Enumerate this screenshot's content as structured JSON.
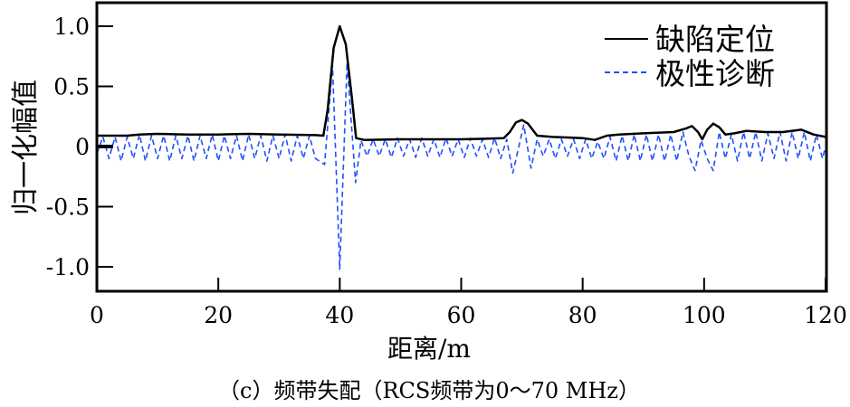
{
  "chart_data": {
    "type": "line",
    "title": "",
    "caption": "（c）频带失配（RCS频带为0～70 MHz）",
    "xlabel": "距离/m",
    "ylabel": "归一化幅值",
    "xlim": [
      0,
      120
    ],
    "ylim": [
      -1.2,
      1.2
    ],
    "xticks": [
      0,
      20,
      40,
      60,
      80,
      100,
      120
    ],
    "xtick_labels": [
      "0",
      "20",
      "40",
      "60",
      "80",
      "100",
      "120"
    ],
    "yticks": [
      1.0,
      0.5,
      0,
      -0.5,
      -1.0
    ],
    "ytick_labels": [
      "1.0",
      "0.5",
      "0",
      "-0.5",
      "-1.0"
    ],
    "grid": false,
    "legend_position": "top-right",
    "series": [
      {
        "name": "缺陷定位",
        "color": "#000000",
        "style": "solid",
        "points": [
          [
            0,
            0.09
          ],
          [
            5,
            0.09
          ],
          [
            7,
            0.1
          ],
          [
            10,
            0.105
          ],
          [
            15,
            0.1
          ],
          [
            18,
            0.1
          ],
          [
            20,
            0.1
          ],
          [
            25,
            0.105
          ],
          [
            30,
            0.1
          ],
          [
            36,
            0.095
          ],
          [
            37.3,
            0.09
          ],
          [
            38,
            0.3
          ],
          [
            39,
            0.82
          ],
          [
            40,
            1.0
          ],
          [
            41,
            0.85
          ],
          [
            42,
            0.4
          ],
          [
            42.7,
            0.07
          ],
          [
            44,
            0.055
          ],
          [
            50,
            0.06
          ],
          [
            55,
            0.06
          ],
          [
            60,
            0.06
          ],
          [
            64,
            0.065
          ],
          [
            67,
            0.07
          ],
          [
            68,
            0.12
          ],
          [
            69,
            0.2
          ],
          [
            70,
            0.22
          ],
          [
            71,
            0.19
          ],
          [
            72.5,
            0.09
          ],
          [
            75,
            0.08
          ],
          [
            80,
            0.07
          ],
          [
            82,
            0.055
          ],
          [
            84,
            0.09
          ],
          [
            86,
            0.1
          ],
          [
            90,
            0.11
          ],
          [
            95,
            0.12
          ],
          [
            97,
            0.15
          ],
          [
            98,
            0.17
          ],
          [
            99,
            0.12
          ],
          [
            99.7,
            0.06
          ],
          [
            100.5,
            0.14
          ],
          [
            101.5,
            0.19
          ],
          [
            102.5,
            0.16
          ],
          [
            103.5,
            0.1
          ],
          [
            105,
            0.11
          ],
          [
            107,
            0.13
          ],
          [
            110,
            0.12
          ],
          [
            113,
            0.12
          ],
          [
            116,
            0.14
          ],
          [
            118,
            0.1
          ],
          [
            120,
            0.08
          ]
        ]
      },
      {
        "name": "极性诊断",
        "color": "#1f4fff",
        "style": "dashed",
        "points": [
          [
            0,
            -0.06
          ],
          [
            1,
            0.08
          ],
          [
            2,
            -0.1
          ],
          [
            3,
            0.08
          ],
          [
            4,
            -0.12
          ],
          [
            5,
            0.08
          ],
          [
            6,
            -0.1
          ],
          [
            7,
            0.1
          ],
          [
            8,
            -0.12
          ],
          [
            9,
            0.09
          ],
          [
            10,
            -0.1
          ],
          [
            11,
            0.09
          ],
          [
            12,
            -0.12
          ],
          [
            13,
            0.09
          ],
          [
            14,
            -0.1
          ],
          [
            15,
            0.09
          ],
          [
            16,
            -0.12
          ],
          [
            17,
            0.09
          ],
          [
            18,
            -0.1
          ],
          [
            19,
            0.1
          ],
          [
            20,
            -0.12
          ],
          [
            21,
            0.09
          ],
          [
            22,
            -0.1
          ],
          [
            23,
            0.09
          ],
          [
            24,
            -0.12
          ],
          [
            25,
            0.1
          ],
          [
            26,
            -0.1
          ],
          [
            27,
            0.09
          ],
          [
            28,
            -0.12
          ],
          [
            29,
            0.09
          ],
          [
            30,
            -0.1
          ],
          [
            31,
            0.1
          ],
          [
            32,
            -0.12
          ],
          [
            33,
            0.09
          ],
          [
            34,
            -0.1
          ],
          [
            35,
            0.09
          ],
          [
            36,
            -0.1
          ],
          [
            37.5,
            -0.15
          ],
          [
            38.8,
            0.68
          ],
          [
            40,
            -1.02
          ],
          [
            41.2,
            0.7
          ],
          [
            42.6,
            -0.3
          ],
          [
            43.5,
            0.05
          ],
          [
            44.5,
            -0.08
          ],
          [
            45.5,
            0.06
          ],
          [
            46.5,
            -0.08
          ],
          [
            47.5,
            0.06
          ],
          [
            48.5,
            -0.09
          ],
          [
            49.5,
            0.07
          ],
          [
            50.5,
            -0.08
          ],
          [
            51.5,
            0.06
          ],
          [
            52.5,
            -0.09
          ],
          [
            53.5,
            0.07
          ],
          [
            54.5,
            -0.08
          ],
          [
            55.5,
            0.06
          ],
          [
            56.5,
            -0.09
          ],
          [
            57.5,
            0.07
          ],
          [
            58.5,
            -0.08
          ],
          [
            59.5,
            0.06
          ],
          [
            60.5,
            -0.09
          ],
          [
            61.5,
            0.07
          ],
          [
            62.5,
            -0.08
          ],
          [
            63.5,
            0.06
          ],
          [
            64.5,
            -0.09
          ],
          [
            65.5,
            0.07
          ],
          [
            66.5,
            -0.1
          ],
          [
            67.5,
            0.06
          ],
          [
            68.5,
            -0.22
          ],
          [
            70.3,
            0.18
          ],
          [
            71.5,
            -0.18
          ],
          [
            72.5,
            0.06
          ],
          [
            73.5,
            -0.08
          ],
          [
            74.5,
            0.06
          ],
          [
            75.5,
            -0.1
          ],
          [
            76.5,
            0.06
          ],
          [
            77.5,
            -0.08
          ],
          [
            78.5,
            0.06
          ],
          [
            79.5,
            -0.1
          ],
          [
            80.5,
            0.06
          ],
          [
            81.5,
            -0.1
          ],
          [
            82.5,
            0.04
          ],
          [
            83.5,
            -0.1
          ],
          [
            84.5,
            0.08
          ],
          [
            85.5,
            -0.12
          ],
          [
            86.5,
            0.09
          ],
          [
            87.5,
            -0.12
          ],
          [
            88.5,
            0.1
          ],
          [
            89.5,
            -0.12
          ],
          [
            90.5,
            0.1
          ],
          [
            91.5,
            -0.12
          ],
          [
            92.5,
            0.1
          ],
          [
            93.5,
            -0.12
          ],
          [
            94.5,
            0.1
          ],
          [
            95.5,
            -0.12
          ],
          [
            96.5,
            0.12
          ],
          [
            97.5,
            -0.08
          ],
          [
            98.5,
            -0.2
          ],
          [
            99.5,
            0.05
          ],
          [
            100.5,
            -0.1
          ],
          [
            101.5,
            -0.2
          ],
          [
            102.5,
            0.12
          ],
          [
            103.5,
            -0.1
          ],
          [
            104.5,
            0.1
          ],
          [
            105.5,
            -0.12
          ],
          [
            106.5,
            0.12
          ],
          [
            107.5,
            -0.1
          ],
          [
            108.5,
            0.12
          ],
          [
            109.5,
            -0.12
          ],
          [
            110.5,
            0.11
          ],
          [
            111.5,
            -0.1
          ],
          [
            112.5,
            0.12
          ],
          [
            113.5,
            -0.12
          ],
          [
            114.5,
            0.12
          ],
          [
            115.5,
            -0.1
          ],
          [
            116.5,
            0.12
          ],
          [
            117.5,
            -0.12
          ],
          [
            118.5,
            0.1
          ],
          [
            119.5,
            -0.1
          ],
          [
            120,
            0.0
          ]
        ]
      }
    ]
  }
}
